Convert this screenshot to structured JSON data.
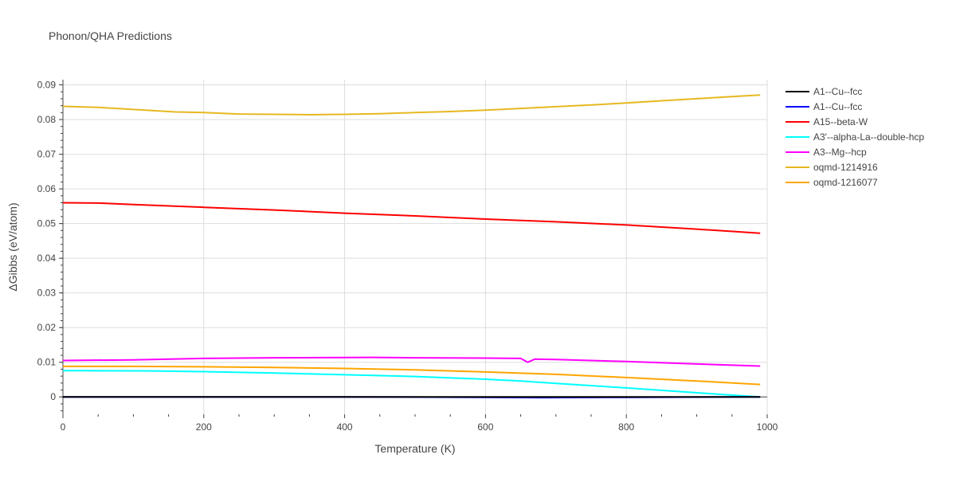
{
  "chart_data": {
    "type": "line",
    "title": "Phonon/QHA Predictions",
    "xlabel": "Temperature (K)",
    "ylabel": "ΔGibbs (eV/atom)",
    "xlim": [
      0,
      1000
    ],
    "ylim": [
      -0.005,
      0.0915
    ],
    "x_ticks": [
      0,
      200,
      400,
      600,
      800,
      1000
    ],
    "x_tick_labels": [
      "0",
      "200",
      "400",
      "600",
      "800",
      "1000"
    ],
    "y_ticks": [
      0,
      0.01,
      0.02,
      0.03,
      0.04,
      0.05,
      0.06,
      0.07,
      0.08,
      0.09
    ],
    "y_tick_labels": [
      "0",
      "0.01",
      "0.02",
      "0.03",
      "0.04",
      "0.05",
      "0.06",
      "0.07",
      "0.08",
      "0.09"
    ],
    "grid": true,
    "legend_position": "right",
    "series": [
      {
        "name": "A1--Cu--fcc",
        "color": "#000000",
        "x": [
          0,
          200,
          400,
          600,
          800,
          990
        ],
        "y": [
          0,
          0,
          0,
          0,
          0,
          0
        ]
      },
      {
        "name": "A1--Cu--fcc",
        "color": "#0000ff",
        "x": [
          0,
          200,
          400,
          600,
          680,
          800,
          990
        ],
        "y": [
          0,
          0,
          0,
          -0.0001,
          -0.0002,
          -0.0001,
          0
        ]
      },
      {
        "name": "A15--beta-W",
        "color": "#ff0000",
        "x": [
          0,
          50,
          100,
          200,
          300,
          400,
          500,
          600,
          700,
          800,
          900,
          990
        ],
        "y": [
          0.056,
          0.0559,
          0.0555,
          0.0547,
          0.0539,
          0.053,
          0.0522,
          0.0513,
          0.0505,
          0.0496,
          0.0484,
          0.0472
        ]
      },
      {
        "name": "A3'--alpha-La--double-hcp",
        "color": "#00ffff",
        "x": [
          0,
          130,
          200,
          300,
          400,
          500,
          600,
          650,
          700,
          800,
          900,
          990
        ],
        "y": [
          0.0076,
          0.0075,
          0.0073,
          0.0069,
          0.0064,
          0.0059,
          0.0051,
          0.0046,
          0.0039,
          0.0026,
          0.0012,
          0.0
        ]
      },
      {
        "name": "A3--Mg--hcp",
        "color": "#ff00ff",
        "x": [
          0,
          100,
          200,
          300,
          440,
          500,
          600,
          650,
          660,
          670,
          700,
          800,
          900,
          990
        ],
        "y": [
          0.0105,
          0.0107,
          0.0111,
          0.0113,
          0.0114,
          0.0113,
          0.0112,
          0.0111,
          0.01,
          0.0109,
          0.0108,
          0.0102,
          0.0095,
          0.0089
        ]
      },
      {
        "name": "oqmd-1214916",
        "color": "#e6b820",
        "x": [
          0,
          50,
          100,
          160,
          200,
          250,
          300,
          350,
          400,
          450,
          500,
          550,
          600,
          650,
          700,
          750,
          800,
          850,
          900,
          950,
          990
        ],
        "y": [
          0.0838,
          0.0835,
          0.0829,
          0.0822,
          0.082,
          0.0816,
          0.0815,
          0.0814,
          0.0815,
          0.0817,
          0.082,
          0.0823,
          0.0827,
          0.0832,
          0.0837,
          0.0842,
          0.0848,
          0.0854,
          0.086,
          0.0866,
          0.0871
        ]
      },
      {
        "name": "oqmd-1216077",
        "color": "#ffa500",
        "x": [
          0,
          100,
          200,
          300,
          400,
          500,
          600,
          700,
          800,
          900,
          990
        ],
        "y": [
          0.0088,
          0.0088,
          0.0087,
          0.0085,
          0.0082,
          0.0078,
          0.0072,
          0.0065,
          0.0056,
          0.0046,
          0.0036
        ]
      }
    ]
  }
}
